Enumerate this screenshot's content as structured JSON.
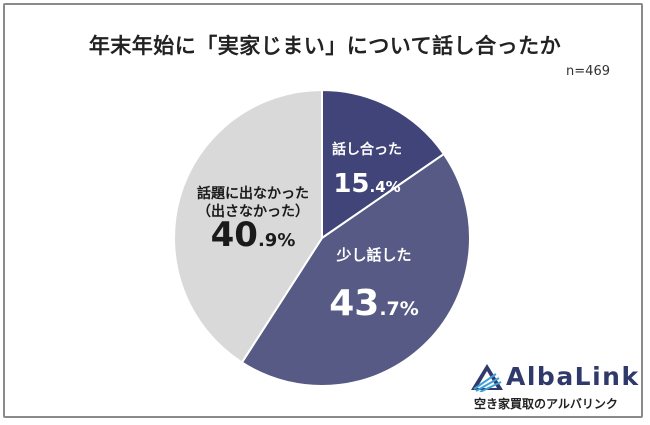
{
  "title": "年末年始に「実家じまい」について話し合ったか",
  "sample_note": "n=469",
  "logo": {
    "name": "AlbaLink",
    "tagline": "空き家買取のアルバリンク"
  },
  "colors": {
    "talked": "#414478",
    "little": "#565a85",
    "not": "#d9d9d9",
    "text_dark": "#1a1a1a",
    "text_light": "#ffffff",
    "logo_dark": "#2f3a6b",
    "logo_light": "#3ea2d8"
  },
  "chart_data": {
    "type": "pie",
    "title": "年末年始に「実家じまい」について話し合ったか",
    "note": "n=469",
    "slices": [
      {
        "label": "話し合った",
        "label_lines": [
          "話し合った"
        ],
        "value": 15.4,
        "num": "15",
        "dec": ".4%",
        "color": "#414478",
        "text_color": "#ffffff"
      },
      {
        "label": "少し話した",
        "label_lines": [
          "少し話した"
        ],
        "value": 43.7,
        "num": "43",
        "dec": ".7%",
        "color": "#565a85",
        "text_color": "#ffffff"
      },
      {
        "label": "話題に出なかった（出さなかった）",
        "label_lines": [
          "話題に出なかった",
          "（出さなかった）"
        ],
        "value": 40.9,
        "num": "40",
        "dec": ".9%",
        "color": "#d9d9d9",
        "text_color": "#1a1a1a"
      }
    ]
  }
}
